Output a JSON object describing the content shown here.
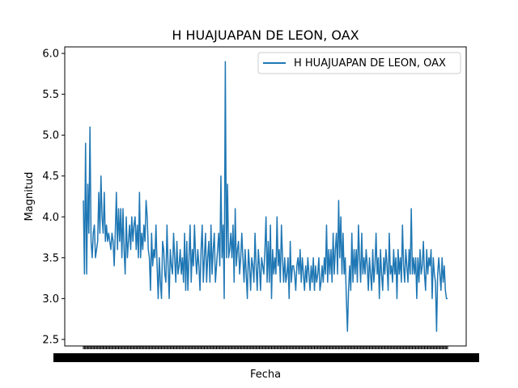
{
  "chart_data": {
    "type": "line",
    "title": "H HUAJUAPAN DE LEON, OAX",
    "xlabel": "Fecha",
    "ylabel": "Magnitud",
    "ylim": [
      2.42,
      6.08
    ],
    "yticks": [
      2.5,
      3.0,
      3.5,
      4.0,
      4.5,
      5.0,
      5.5,
      6.0
    ],
    "grid": false,
    "legend_position": "top-right",
    "x_tick_labels_note": "overlapping, illegible date labels",
    "series": [
      {
        "name": "H HUAJUAPAN DE LEON, OAX",
        "color": "#1f77b4",
        "values": [
          4.2,
          3.3,
          4.9,
          3.3,
          4.4,
          3.8,
          5.1,
          3.7,
          3.5,
          3.8,
          3.9,
          3.5,
          3.6,
          3.7,
          4.3,
          3.8,
          4.5,
          4.0,
          3.8,
          4.3,
          3.7,
          3.9,
          3.7,
          3.8,
          3.7,
          3.6,
          3.8,
          3.7,
          3.4,
          3.8,
          4.3,
          3.6,
          4.1,
          3.7,
          4.1,
          3.5,
          4.1,
          3.6,
          3.3,
          4.0,
          3.5,
          3.7,
          3.9,
          3.6,
          4.0,
          3.7,
          3.9,
          4.0,
          3.6,
          3.9,
          3.5,
          4.3,
          3.5,
          3.8,
          3.6,
          3.9,
          3.7,
          4.2,
          4.0,
          3.6,
          3.5,
          3.1,
          3.8,
          3.4,
          3.6,
          3.5,
          3.9,
          3.4,
          3.0,
          3.5,
          3.2,
          3.0,
          3.7,
          3.6,
          3.3,
          3.2,
          3.9,
          3.4,
          3.0,
          3.6,
          3.4,
          3.3,
          3.8,
          3.5,
          3.2,
          3.7,
          3.3,
          3.4,
          3.6,
          3.3,
          3.5,
          3.2,
          3.8,
          3.1,
          3.7,
          3.1,
          3.5,
          3.9,
          3.2,
          3.6,
          3.4,
          3.9,
          3.5,
          3.3,
          3.6,
          3.4,
          3.1,
          3.6,
          3.9,
          3.2,
          3.5,
          3.8,
          3.2,
          3.5,
          3.7,
          3.2,
          3.9,
          3.3,
          3.6,
          3.8,
          3.2,
          3.4,
          3.6,
          3.8,
          3.4,
          4.5,
          3.5,
          3.9,
          3.0,
          5.9,
          3.5,
          4.4,
          3.5,
          3.6,
          3.8,
          3.5,
          3.9,
          3.2,
          4.1,
          3.4,
          3.6,
          3.7,
          3.3,
          3.5,
          3.8,
          3.5,
          3.2,
          3.6,
          3.3,
          3.0,
          3.6,
          3.4,
          3.1,
          3.5,
          3.4,
          3.2,
          3.8,
          3.4,
          3.1,
          3.6,
          3.4,
          3.1,
          3.5,
          3.4,
          3.3,
          3.6,
          4.0,
          3.2,
          3.7,
          3.2,
          3.9,
          3.0,
          3.6,
          3.3,
          3.5,
          3.3,
          4.0,
          3.4,
          3.6,
          3.2,
          3.9,
          3.5,
          3.2,
          3.5,
          3.2,
          3.3,
          3.5,
          3.0,
          3.7,
          3.2,
          3.4,
          3.4,
          3.3,
          3.1,
          3.4,
          3.5,
          3.3,
          3.6,
          3.2,
          3.5,
          3.3,
          3.1,
          3.4,
          3.2,
          3.5,
          3.3,
          3.1,
          3.4,
          3.2,
          3.5,
          3.1,
          3.4,
          3.2,
          3.3,
          3.5,
          3.1,
          3.2,
          3.4,
          3.2,
          3.5,
          3.3,
          3.9,
          3.2,
          3.6,
          3.3,
          3.6,
          3.2,
          3.8,
          3.3,
          3.6,
          3.8,
          3.3,
          4.2,
          3.5,
          4.0,
          3.3,
          3.8,
          3.3,
          3.5,
          3.0,
          2.6,
          3.1,
          3.4,
          3.1,
          3.8,
          3.2,
          3.6,
          3.3,
          3.6,
          3.2,
          3.9,
          3.5,
          3.2,
          3.8,
          3.3,
          3.5,
          3.3,
          3.6,
          3.4,
          3.1,
          3.5,
          3.3,
          3.1,
          3.6,
          3.2,
          3.4,
          3.8,
          3.3,
          3.5,
          3.0,
          3.6,
          3.3,
          3.1,
          3.5,
          3.3,
          3.6,
          3.4,
          3.1,
          3.8,
          3.3,
          3.4,
          3.2,
          3.6,
          3.3,
          3.5,
          3.0,
          3.6,
          3.3,
          3.5,
          3.2,
          3.9,
          3.4,
          3.2,
          3.6,
          3.4,
          3.2,
          3.6,
          3.3,
          4.1,
          3.3,
          3.5,
          3.3,
          3.5,
          3.0,
          3.5,
          3.2,
          3.6,
          3.3,
          3.4,
          3.7,
          3.3,
          3.1,
          3.6,
          3.3,
          3.5,
          3.4,
          3.6,
          3.0,
          3.5,
          3.3,
          3.2,
          2.6,
          3.3,
          3.5,
          3.3,
          3.1,
          3.5,
          3.2,
          3.4,
          3.1,
          3.0,
          3.0
        ]
      }
    ]
  }
}
